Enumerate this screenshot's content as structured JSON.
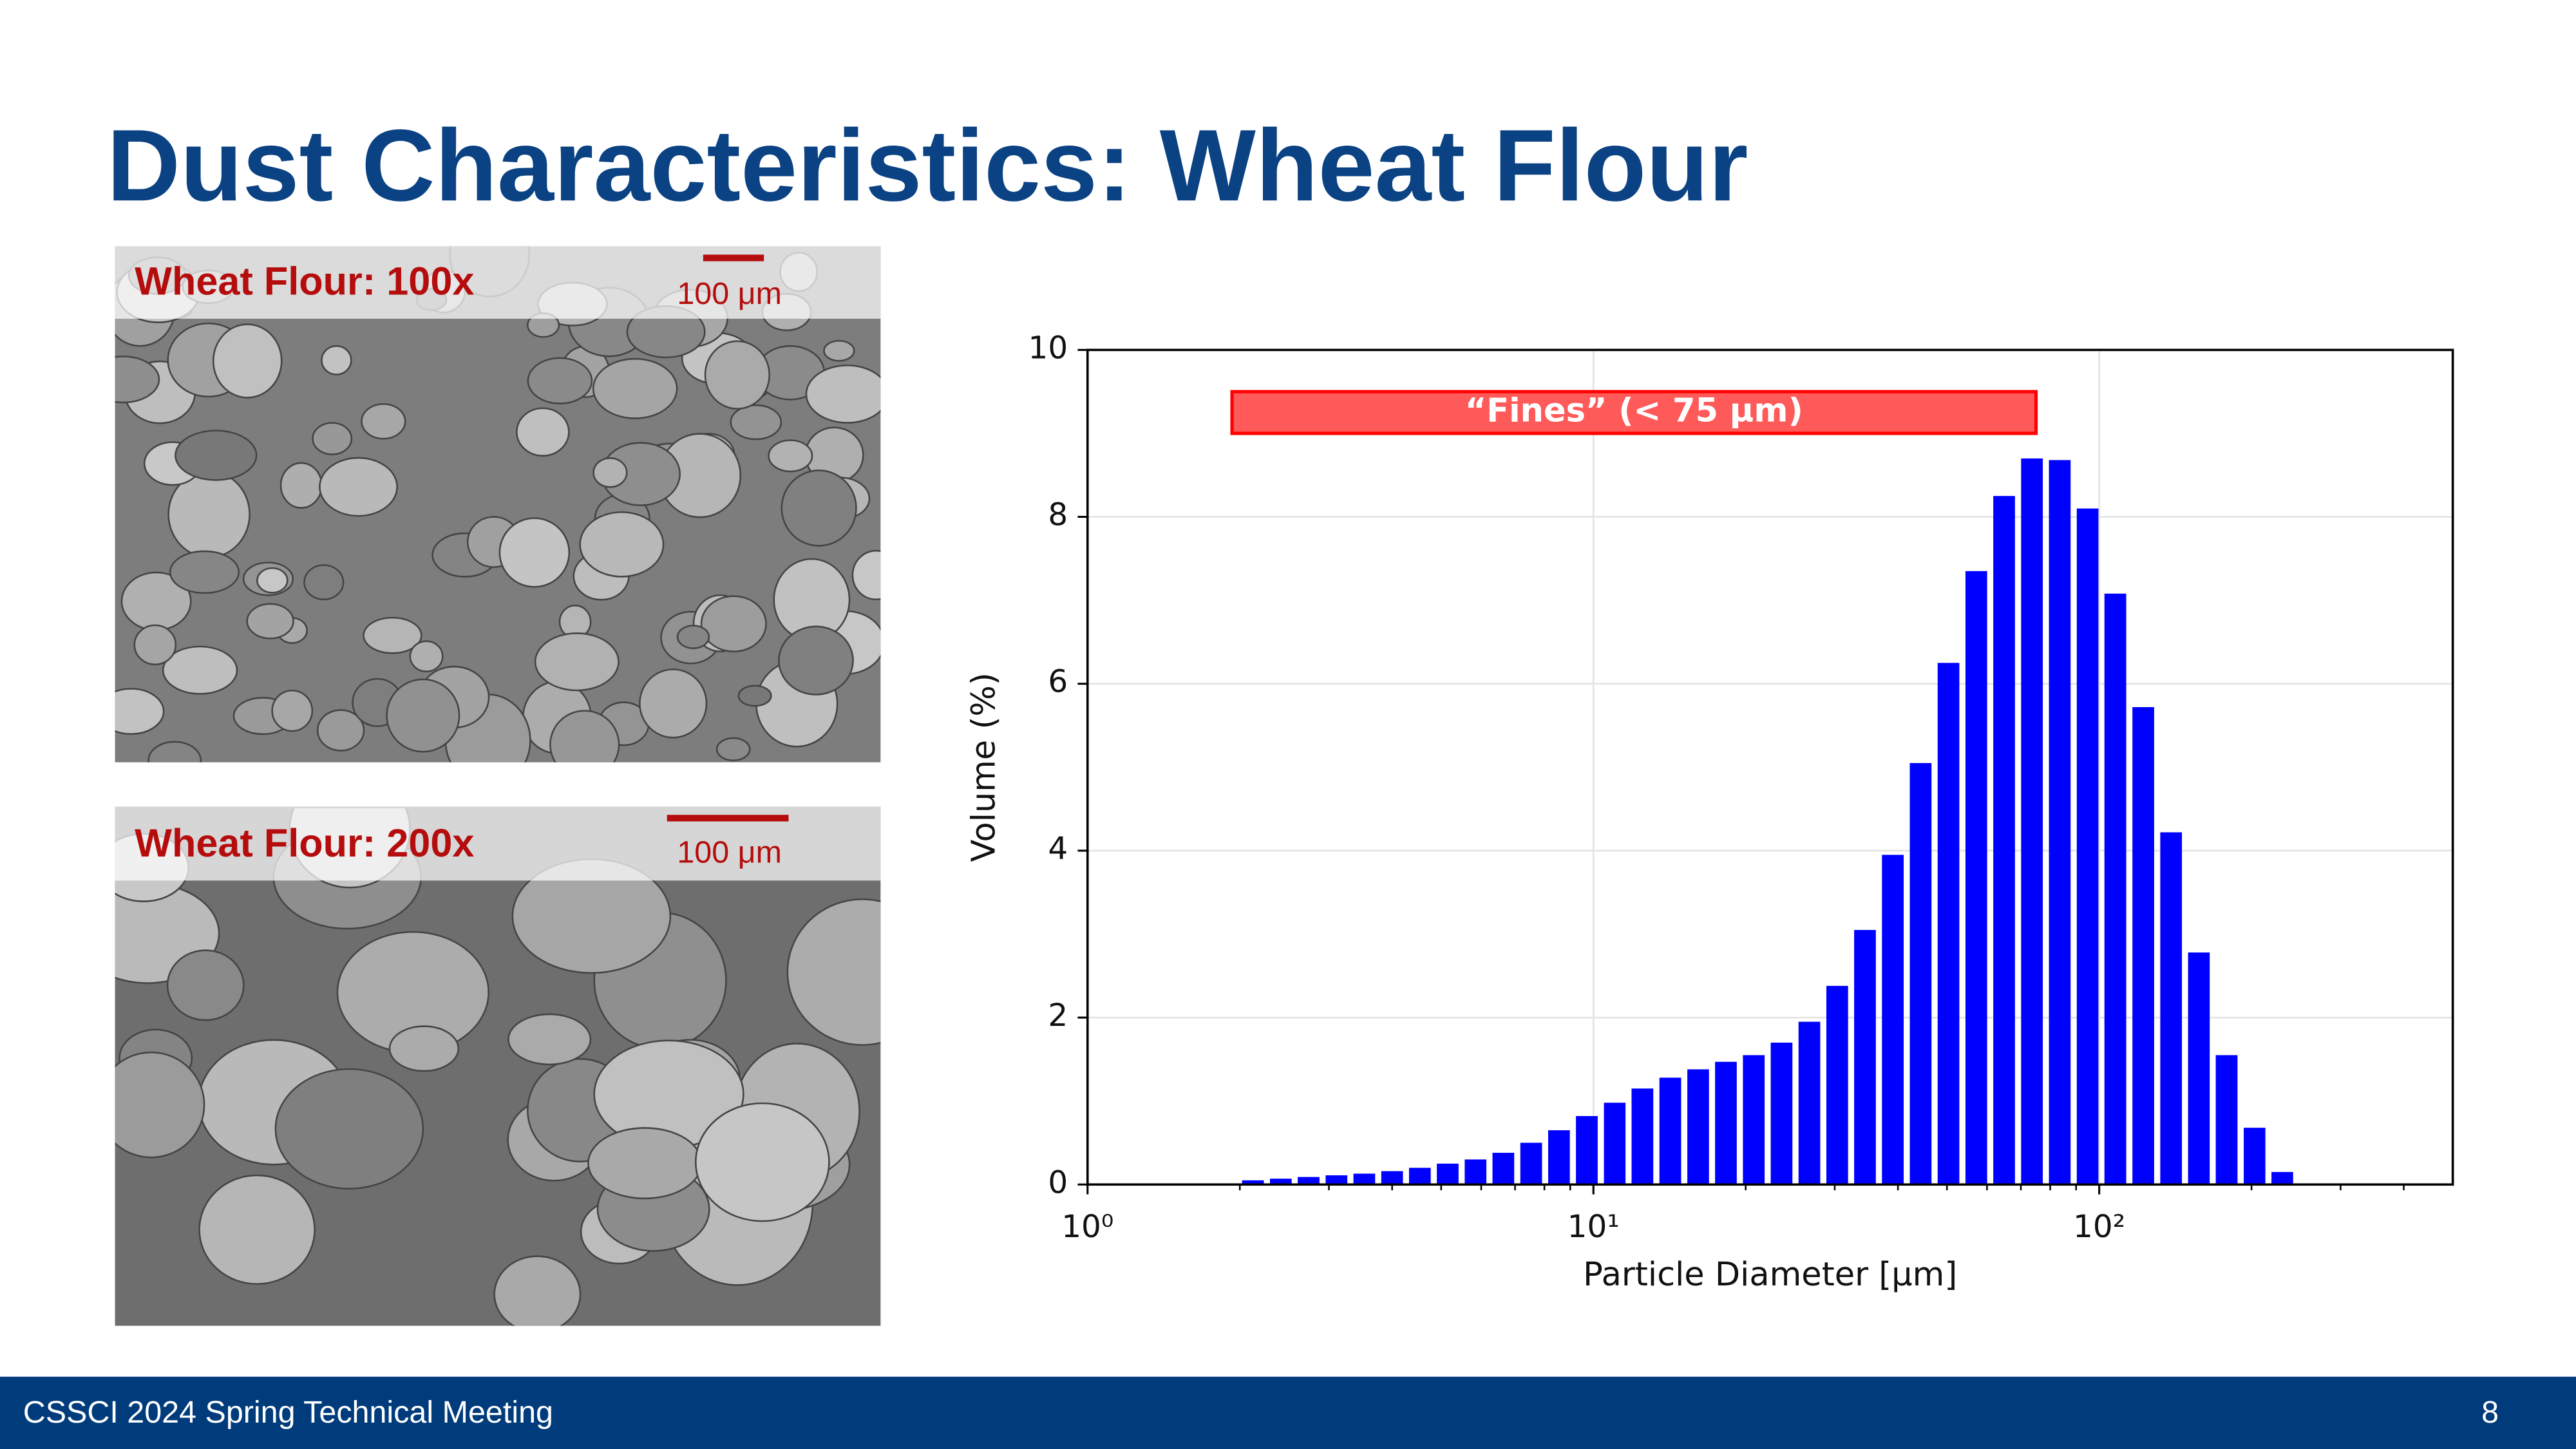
{
  "title": "Dust Characteristics: Wheat Flour",
  "images": [
    {
      "caption": "Wheat Flour: 100x",
      "scale_bar": "100 μm"
    },
    {
      "caption": "Wheat Flour: 200x",
      "scale_bar": "100 μm"
    }
  ],
  "footer": {
    "text": "CSSCI 2024 Spring Technical Meeting",
    "page_number": "8"
  },
  "chart_data": {
    "type": "bar",
    "xscale": "log",
    "xlabel": "Particle Diameter [μm]",
    "ylabel": "Volume (%)",
    "color": "#0000ff",
    "grid": true,
    "x": [
      2.123,
      2.41,
      2.735,
      3.105,
      3.524,
      4.0,
      4.539,
      5.152,
      5.848,
      6.637,
      7.534,
      8.551,
      9.705,
      11.02,
      12.5,
      14.19,
      16.11,
      18.28,
      20.75,
      23.55,
      26.73,
      30.34,
      34.43,
      39.08,
      44.36,
      50.35,
      57.15,
      64.86,
      73.62,
      83.56,
      94.84,
      107.6,
      122.2,
      138.7,
      157.4,
      178.6,
      202.8,
      230.1
    ],
    "values": [
      0.05,
      0.07,
      0.09,
      0.11,
      0.13,
      0.16,
      0.2,
      0.25,
      0.3,
      0.38,
      0.5,
      0.65,
      0.82,
      0.98,
      1.15,
      1.28,
      1.38,
      1.47,
      1.55,
      1.7,
      1.95,
      2.38,
      3.05,
      3.95,
      5.05,
      6.25,
      7.35,
      8.25,
      8.7,
      8.68,
      8.1,
      7.08,
      5.72,
      4.22,
      2.78,
      1.55,
      0.68,
      0.15
    ],
    "xlim": [
      1,
      500
    ],
    "xticks": [
      {
        "value": 1,
        "label": "10⁰"
      },
      {
        "value": 10,
        "label": "10¹"
      },
      {
        "value": 100,
        "label": "10²"
      }
    ],
    "xminorticks": [
      2,
      3,
      4,
      5,
      6,
      7,
      8,
      9,
      20,
      30,
      40,
      50,
      60,
      70,
      80,
      90,
      200,
      300,
      400
    ],
    "ylim": [
      0,
      10
    ],
    "yticks": [
      0,
      2,
      4,
      6,
      8,
      10
    ],
    "annotation": {
      "text": "“Fines” (< 75 μm)",
      "x": [
        1.93,
        75
      ],
      "y": [
        9.0,
        9.5
      ],
      "color": "#ff5a5a",
      "edge": "#ff0000"
    }
  }
}
